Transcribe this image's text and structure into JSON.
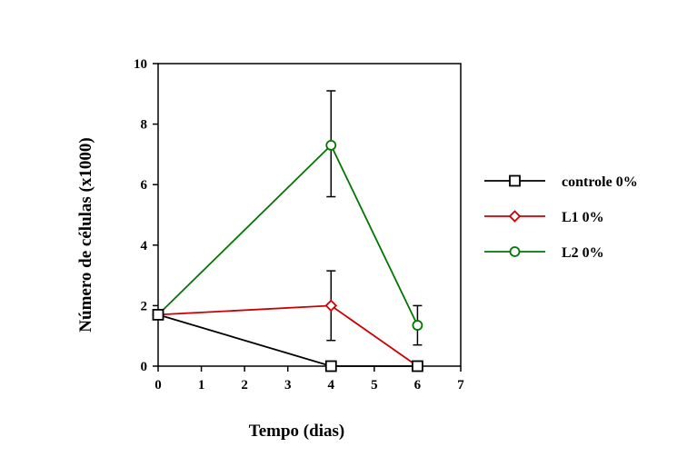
{
  "chart_data": {
    "type": "line",
    "title": "",
    "xlabel": "Tempo (dias)",
    "ylabel": "Número de células (x1000)",
    "xlim": [
      0,
      7
    ],
    "ylim": [
      0,
      10
    ],
    "x_ticks": [
      "0",
      "1",
      "2",
      "3",
      "4",
      "5",
      "6",
      "7"
    ],
    "y_ticks": [
      "0",
      "2",
      "4",
      "6",
      "8",
      "10"
    ],
    "grid": false,
    "legend_position": "right",
    "series": [
      {
        "name": "controle 0%",
        "color": "#000000",
        "marker": "square",
        "points": [
          {
            "x": 0,
            "y": 1.7
          },
          {
            "x": 4,
            "y": 0
          },
          {
            "x": 6,
            "y": 0
          }
        ]
      },
      {
        "name": "L1 0%",
        "color": "#cc0000",
        "marker": "diamond",
        "points": [
          {
            "x": 0,
            "y": 1.7
          },
          {
            "x": 4,
            "y": 2.0,
            "err_low": 0.85,
            "err_high": 3.15
          },
          {
            "x": 6,
            "y": 0
          }
        ]
      },
      {
        "name": "L2 0%",
        "color": "#007700",
        "marker": "circle",
        "points": [
          {
            "x": 0,
            "y": 1.7
          },
          {
            "x": 4,
            "y": 7.3,
            "err_low": 5.6,
            "err_high": 9.1
          },
          {
            "x": 6,
            "y": 1.35,
            "err_low": 0.7,
            "err_high": 2.0
          }
        ]
      }
    ]
  }
}
